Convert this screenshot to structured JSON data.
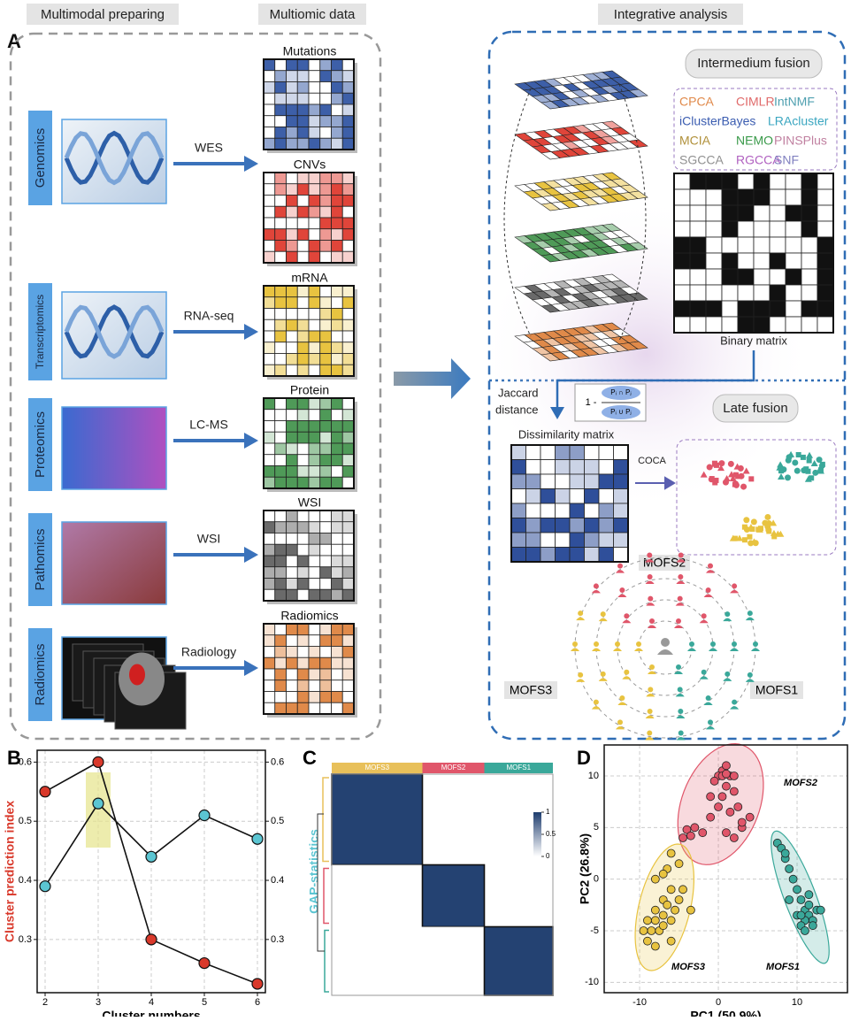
{
  "panel_a": {
    "label": "A",
    "sections": [
      "Multimodal  preparing",
      "Multiomic data",
      "Integrative analysis"
    ],
    "modalities": [
      {
        "label": "Genomics",
        "method": "WES"
      },
      {
        "label": "Transcriptomics",
        "method": "RNA-seq"
      },
      {
        "label": "Proteomics",
        "method": "LC-MS"
      },
      {
        "label": "Pathomics",
        "method": "WSI"
      },
      {
        "label": "Radiomics",
        "method": "Radiology"
      }
    ],
    "matrices": [
      {
        "label": "Mutations",
        "color": "#3d5fa8"
      },
      {
        "label": "CNVs",
        "color": "#e0453a"
      },
      {
        "label": "mRNA",
        "color": "#e8c340"
      },
      {
        "label": "Protein",
        "color": "#4f9a58"
      },
      {
        "label": "WSI",
        "color": "#6a6a6a"
      },
      {
        "label": "Radiomics",
        "color": "#e08a4a"
      }
    ],
    "intermedium": {
      "title": "Intermedium fusion",
      "algorithms": [
        [
          {
            "name": "CPCA",
            "color": "#e0894a"
          },
          {
            "name": "CIMLR",
            "color": "#e06a6a"
          },
          {
            "name": "IntNMF",
            "color": "#4fa0b0"
          }
        ],
        [
          {
            "name": "iClusterBayes",
            "color": "#3a5cb0"
          },
          {
            "name": "LRAcluster",
            "color": "#3aa6c0"
          }
        ],
        [
          {
            "name": "MCIA",
            "color": "#b0903a"
          },
          {
            "name": "NEMO",
            "color": "#3a9a4a"
          },
          {
            "name": "PINSPlus",
            "color": "#c080a0"
          }
        ],
        [
          {
            "name": "SGCCA",
            "color": "#909090"
          },
          {
            "name": "RGCCA",
            "color": "#b060c0"
          },
          {
            "name": "SNF",
            "color": "#8080c0"
          }
        ]
      ],
      "matrix_label": "Binary matrix"
    },
    "late": {
      "distance": [
        "Jaccard",
        "distance"
      ],
      "formula": {
        "lead": "1 -",
        "top": "Pᵢ ∩ Pⱼ",
        "bottom": "Pᵢ ∪ Pⱼ"
      },
      "title": "Late fusion",
      "matrix_label": "Dissimilarity matrix",
      "method": "COCA",
      "groups": [
        "MOFS2",
        "MOFS3",
        "MOFS1"
      ]
    }
  },
  "chart_data": [
    {
      "type": "line",
      "panel": "B",
      "xlabel": "Cluster numbers",
      "x": [
        2,
        3,
        4,
        5,
        6
      ],
      "xlim": [
        1.85,
        6.15
      ],
      "xticks": [
        2,
        3,
        4,
        5,
        6
      ],
      "ylim": [
        0.21,
        0.62
      ],
      "yticks": [
        0.3,
        0.4,
        0.5,
        0.6
      ],
      "y2lim": [
        0.21,
        0.62
      ],
      "y2ticks": [
        0.3,
        0.4,
        0.5,
        0.6
      ],
      "grid": true,
      "highlight": 3,
      "series": [
        {
          "name": "Cluster prediction index",
          "color": "#d9392b",
          "values": [
            0.55,
            0.6,
            0.3,
            0.26,
            0.225
          ]
        },
        {
          "name": "GAP-statistics",
          "color": "#5bc5d2",
          "axis": "y2",
          "values": [
            0.39,
            0.53,
            0.44,
            0.51,
            0.47
          ]
        }
      ]
    },
    {
      "type": "heatmap",
      "panel": "C",
      "categories": [
        "MOFS3",
        "MOFS2",
        "MOFS1"
      ],
      "colors": [
        "#e8c05a",
        "#e0566a",
        "#3aa89a"
      ],
      "sizes": [
        41,
        28,
        31
      ],
      "values": [
        [
          1,
          0,
          0
        ],
        [
          0,
          1,
          0
        ],
        [
          0,
          0,
          1
        ]
      ],
      "zlim": [
        0,
        1
      ],
      "zticks": [
        0,
        0.5,
        1
      ]
    },
    {
      "type": "scatter",
      "panel": "D",
      "xlabel": "PC1 (50.9%)",
      "ylabel": "PC2 (26.8%)",
      "xlim": [
        -14.5,
        16.4
      ],
      "xticks": [
        -10,
        0,
        10
      ],
      "ylim": [
        -11,
        13
      ],
      "yticks": [
        -10,
        -5,
        0,
        5,
        10
      ],
      "grid": true,
      "series": [
        {
          "name": "MOFS2",
          "color": "#e0566a",
          "x": [
            -4.5,
            -4,
            -3.5,
            -3,
            -2,
            -1,
            0,
            0.5,
            1,
            1.5,
            0.5,
            1,
            0,
            -0.5,
            2,
            2.5,
            3,
            2,
            4,
            1,
            3,
            1.5,
            -1,
            0.5,
            1,
            2
          ],
          "values": [
            4,
            4.8,
            4.2,
            5,
            4.5,
            6,
            7,
            8,
            9,
            10,
            10.5,
            11,
            10,
            9.5,
            10,
            7,
            5,
            4,
            6,
            4.5,
            5.5,
            6.5,
            8,
            10,
            10.2,
            8.5
          ]
        },
        {
          "name": "MOFS3",
          "color": "#e8c340",
          "x": [
            -6,
            -5,
            -6.5,
            -8,
            -7,
            -6,
            -5,
            -7,
            -8,
            -9,
            -8.5,
            -9,
            -8,
            -7.5,
            -6,
            -7,
            -5.5,
            -9.5,
            -4.5,
            -6,
            -8,
            -7,
            -3.5,
            -6.5
          ],
          "values": [
            2.5,
            1.5,
            1,
            0,
            0.5,
            -1,
            -2,
            -2,
            -3,
            -4,
            -5,
            -6,
            -6.5,
            -5,
            -4,
            -4.5,
            -3,
            -5,
            -1,
            -6,
            -4,
            -3.5,
            -3,
            -2.5
          ]
        },
        {
          "name": "MOFS1",
          "color": "#3aa89a",
          "x": [
            7.5,
            8,
            8.5,
            9,
            9.5,
            10,
            10.5,
            11,
            11.5,
            12,
            11,
            10.5,
            12.5,
            11.5,
            9,
            12,
            11,
            10,
            13,
            11.5,
            8.5,
            10.5
          ],
          "values": [
            3.5,
            3,
            2,
            1,
            0,
            -1,
            -2,
            -3,
            -3.5,
            -4,
            -4,
            -4.5,
            -3,
            -2.5,
            -2,
            -4.5,
            -5,
            -3.5,
            -3,
            -1.5,
            2.5,
            -3.5
          ]
        }
      ]
    }
  ]
}
